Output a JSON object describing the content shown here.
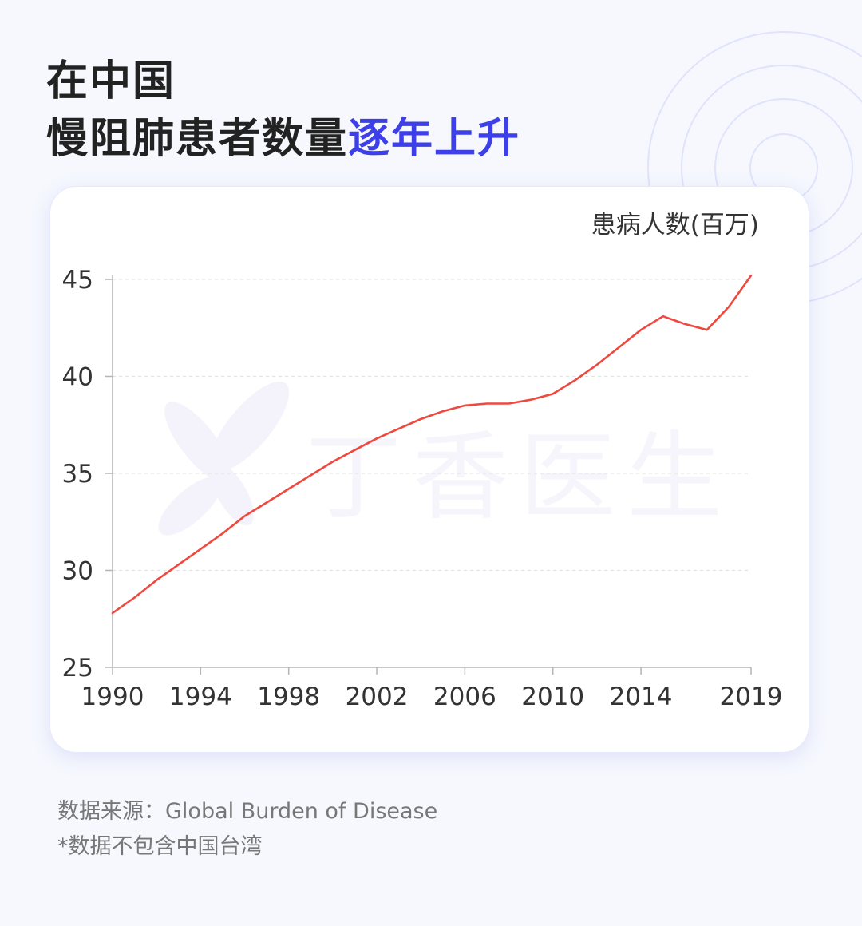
{
  "title": {
    "line1": "在中国",
    "line2_plain": "慢阻肺患者数量",
    "line2_accent": "逐年上升"
  },
  "watermark_text": "丁香医生",
  "colors": {
    "accent": "#3d3fe8",
    "line": "#f0483e",
    "background": "#f6f8fe",
    "card": "#ffffff"
  },
  "chart_data": {
    "type": "line",
    "ylabel": "患病人数(百万)",
    "ylim": [
      25,
      45
    ],
    "yticks": [
      25,
      30,
      35,
      40,
      45
    ],
    "xlim": [
      1990,
      2019
    ],
    "xticks": [
      1990,
      1994,
      1998,
      2002,
      2006,
      2010,
      2014,
      2019
    ],
    "grid": true,
    "series": [
      {
        "x": [
          1990,
          1991,
          1992,
          1993,
          1994,
          1995,
          1996,
          1997,
          1998,
          1999,
          2000,
          2001,
          2002,
          2003,
          2004,
          2005,
          2006,
          2007,
          2008,
          2009,
          2010,
          2011,
          2012,
          2013,
          2014,
          2015,
          2016,
          2017,
          2018,
          2019
        ],
        "values": [
          27.8,
          28.6,
          29.5,
          30.3,
          31.1,
          31.9,
          32.8,
          33.5,
          34.2,
          34.9,
          35.6,
          36.2,
          36.8,
          37.3,
          37.8,
          38.2,
          38.5,
          38.6,
          38.6,
          38.8,
          39.1,
          39.8,
          40.6,
          41.5,
          42.4,
          43.1,
          42.7,
          42.4,
          43.6,
          45.2
        ]
      }
    ]
  },
  "footer": {
    "source": "数据来源：Global Burden of Disease",
    "note": "*数据不包含中国台湾"
  }
}
